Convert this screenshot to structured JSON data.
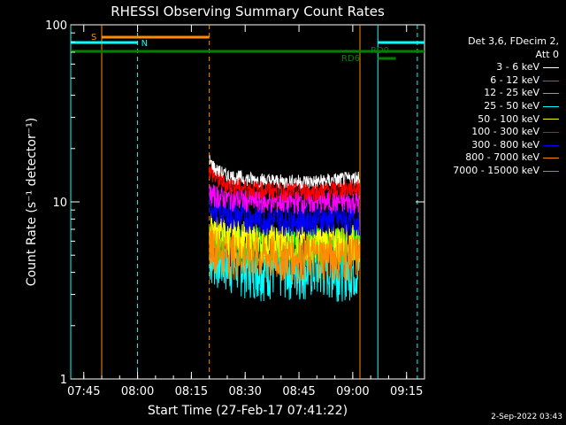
{
  "chart_data": {
    "type": "line",
    "title": "RHESSI Observing Summary Count Rates",
    "xlabel": "Start Time (27-Feb-17 07:41:22)",
    "ylabel": "Count Rate (s⁻¹ detector⁻¹)",
    "y_scale": "log",
    "ylim": [
      1,
      100
    ],
    "xlim": [
      "07:41:22",
      "09:20:00"
    ],
    "x_ticks": [
      "07:45",
      "08:00",
      "08:15",
      "08:30",
      "08:45",
      "09:00",
      "09:15"
    ],
    "y_ticks": [
      "1",
      "10",
      "100"
    ],
    "grid": false,
    "legend_position": "right",
    "legend_header": [
      "Det 3,6, FDecim 2,",
      "Att 0"
    ],
    "series": [
      {
        "name": "3 - 6 keV",
        "color": "#ffffff",
        "x": [
          "08:20",
          "08:22",
          "08:25",
          "08:30",
          "08:40",
          "08:50",
          "09:00",
          "09:02"
        ],
        "y": [
          17,
          15,
          14,
          13.5,
          13,
          13,
          13.5,
          14
        ]
      },
      {
        "name": "6 - 12 keV",
        "color": "#ff00ff",
        "x": [
          "08:20",
          "08:25",
          "08:35",
          "08:50",
          "09:02"
        ],
        "y": [
          11,
          10.5,
          10,
          10,
          10
        ]
      },
      {
        "name": "12 - 25 keV",
        "color": "#00ff00",
        "x": [
          "08:20",
          "08:25",
          "08:35",
          "08:50",
          "09:02"
        ],
        "y": [
          6.5,
          6,
          5.8,
          5.8,
          5.8
        ]
      },
      {
        "name": "25 - 50 keV",
        "color": "#00ffff",
        "x": [
          "08:20",
          "08:25",
          "08:35",
          "08:50",
          "09:02"
        ],
        "y": [
          5,
          4.5,
          4.2,
          4.2,
          4.2
        ]
      },
      {
        "name": "50 - 100 keV",
        "color": "#ffff00",
        "x": [
          "08:20",
          "08:25",
          "08:35",
          "08:50",
          "09:02"
        ],
        "y": [
          7.5,
          6.5,
          6,
          6,
          6
        ]
      },
      {
        "name": "100 - 300 keV",
        "color": "#ff0000",
        "x": [
          "08:20",
          "08:22",
          "08:25",
          "08:30",
          "08:40",
          "08:50",
          "09:00",
          "09:02"
        ],
        "y": [
          15,
          13.5,
          12.5,
          12,
          11.5,
          11.5,
          12,
          12
        ]
      },
      {
        "name": "300 - 800 keV",
        "color": "#0000ff",
        "x": [
          "08:20",
          "08:22",
          "08:25",
          "08:35",
          "08:50",
          "09:02"
        ],
        "y": [
          10,
          9,
          8.5,
          8,
          8,
          8
        ]
      },
      {
        "name": "800 - 7000 keV",
        "color": "#ff8c00",
        "x": [
          "08:20",
          "08:22",
          "08:25",
          "08:35",
          "08:50",
          "09:02"
        ],
        "y": [
          6,
          5.5,
          5.2,
          5,
          5,
          5
        ]
      },
      {
        "name": "7000 - 15000 keV",
        "color": "#b8860b",
        "x": [],
        "y": []
      }
    ],
    "annotations": [
      "S",
      "N",
      "RD0",
      "RD6"
    ]
  },
  "flags": {
    "S": {
      "label": "S",
      "color": "#ff8c00",
      "start": "07:50",
      "end": "08:20"
    },
    "N": {
      "label": "N",
      "color": "#00ffff",
      "segments": [
        [
          "07:41:22",
          "08:00"
        ],
        [
          "09:07",
          "09:20"
        ]
      ]
    },
    "RDO": {
      "label": "RD0",
      "color": "#008000",
      "segments": [
        [
          "07:41:22",
          "09:20"
        ]
      ]
    },
    "RD6": {
      "label": "RD6",
      "color": "#008000",
      "segments": [
        [
          "09:07",
          "09:12"
        ]
      ]
    }
  },
  "timestamp": "2-Sep-2022 03:43"
}
